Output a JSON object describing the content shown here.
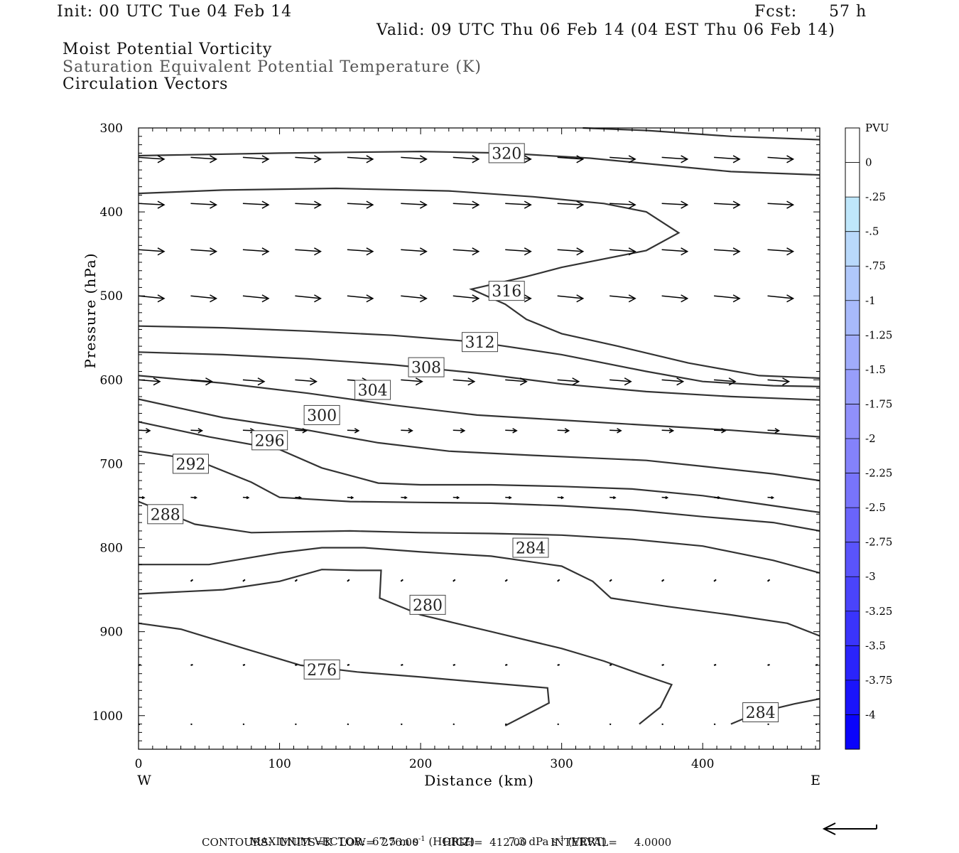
{
  "header": {
    "init": "Init: 00 UTC Tue 04 Feb 14",
    "fcst_label": "Fcst:",
    "fcst_hours": "57 h",
    "valid": "Valid: 09 UTC Thu 06 Feb 14 (04 EST Thu 06 Feb 14)",
    "fields": [
      "Moist Potential Vorticity",
      "Saturation Equivalent Potential Temperature (K)",
      "Circulation Vectors"
    ]
  },
  "footer": {
    "max_vector_label": "MAXIMUM VECTOR:",
    "max_vector_horiz_value": "67.5",
    "max_vector_horiz_units": "m s",
    "max_vector_horiz_tag": "(HORIZ)",
    "max_vector_vert_value": "7.3",
    "max_vector_vert_units": "dPa s",
    "max_vector_vert_tag": "(VERT)",
    "exponent": "-1",
    "contours_line": "CONTOURS:  UNITS=K  LOW=  276.00       HIGH=  412.00       INTERVAL=     4.0000"
  },
  "colorbar": {
    "units": "PVU",
    "labels": [
      "0",
      "-.25",
      "-.5",
      "-.75",
      "-1",
      "-1.25",
      "-1.5",
      "-1.75",
      "-2",
      "-2.25",
      "-2.5",
      "-2.75",
      "-3",
      "-3.25",
      "-3.5",
      "-3.75",
      "-4"
    ],
    "colors": [
      "#ffffff",
      "#ffffff",
      "#bfe7fb",
      "#b9d9fb",
      "#b0c8fb",
      "#a8bafb",
      "#a0acfb",
      "#989efb",
      "#9090fb",
      "#8482fb",
      "#7874fb",
      "#6a64fb",
      "#5a54fb",
      "#4a44fb",
      "#3a34fb",
      "#2a24fb",
      "#1a14fb",
      "#0a04fb"
    ]
  },
  "chart_data": {
    "type": "line",
    "xlabel": "Distance (km)",
    "ylabel": "Pressure (hPa)",
    "xlim": [
      0,
      483
    ],
    "ylim": [
      300,
      1040
    ],
    "y_scale": "linear-inverted",
    "x_ticks": [
      0,
      100,
      200,
      300,
      400
    ],
    "y_ticks": [
      300,
      400,
      500,
      600,
      700,
      800,
      900,
      1000
    ],
    "x_end_labels": {
      "left": "W",
      "right": "E"
    },
    "contour_color": "#333333",
    "contours": [
      {
        "value": 276,
        "label": "276",
        "label_at": [
          130,
          945
        ],
        "points": [
          [
            0,
            890
          ],
          [
            30,
            897
          ],
          [
            75,
            920
          ],
          [
            115,
            940
          ],
          [
            155,
            948
          ],
          [
            200,
            954
          ],
          [
            255,
            962
          ],
          [
            290,
            967
          ],
          [
            291,
            985
          ],
          [
            260,
            1012
          ]
        ]
      },
      {
        "value": 280,
        "label": "280",
        "label_at": [
          205,
          868
        ],
        "points": [
          [
            0,
            855
          ],
          [
            60,
            850
          ],
          [
            100,
            840
          ],
          [
            130,
            826
          ],
          [
            155,
            827
          ],
          [
            172,
            827
          ],
          [
            171,
            860
          ],
          [
            200,
            880
          ],
          [
            250,
            900
          ],
          [
            300,
            920
          ],
          [
            330,
            935
          ],
          [
            355,
            950
          ],
          [
            378,
            963
          ],
          [
            370,
            990
          ],
          [
            355,
            1010
          ]
        ]
      },
      {
        "value": 284,
        "label": "284",
        "label_at": [
          278,
          800
        ],
        "points": [
          [
            0,
            820
          ],
          [
            50,
            820
          ],
          [
            100,
            806
          ],
          [
            130,
            800
          ],
          [
            160,
            800
          ],
          [
            200,
            805
          ],
          [
            250,
            810
          ],
          [
            300,
            822
          ],
          [
            322,
            840
          ],
          [
            335,
            860
          ],
          [
            375,
            870
          ],
          [
            420,
            880
          ],
          [
            460,
            890
          ],
          [
            483,
            905
          ]
        ]
      },
      {
        "value": 284,
        "label": "284",
        "label_at": [
          441,
          996
        ],
        "points": [
          [
            420,
            1010
          ],
          [
            440,
            996
          ],
          [
            465,
            986
          ],
          [
            483,
            980
          ]
        ]
      },
      {
        "value": 288,
        "label": "288",
        "label_at": [
          19,
          760
        ],
        "points": [
          [
            0,
            745
          ],
          [
            40,
            772
          ],
          [
            80,
            782
          ],
          [
            150,
            780
          ],
          [
            200,
            782
          ],
          [
            250,
            783
          ],
          [
            300,
            785
          ],
          [
            350,
            790
          ],
          [
            400,
            798
          ],
          [
            450,
            815
          ],
          [
            483,
            830
          ]
        ]
      },
      {
        "value": 292,
        "label": "292",
        "label_at": [
          37,
          700
        ],
        "points": [
          [
            0,
            685
          ],
          [
            40,
            695
          ],
          [
            80,
            722
          ],
          [
            100,
            740
          ],
          [
            150,
            745
          ],
          [
            200,
            746
          ],
          [
            250,
            747
          ],
          [
            300,
            750
          ],
          [
            350,
            755
          ],
          [
            400,
            763
          ],
          [
            450,
            770
          ],
          [
            483,
            780
          ]
        ]
      },
      {
        "value": 296,
        "label": "296",
        "label_at": [
          93,
          672
        ],
        "points": [
          [
            0,
            650
          ],
          [
            50,
            668
          ],
          [
            100,
            683
          ],
          [
            130,
            705
          ],
          [
            170,
            723
          ],
          [
            200,
            725
          ],
          [
            250,
            725
          ],
          [
            300,
            727
          ],
          [
            350,
            730
          ],
          [
            400,
            738
          ],
          [
            450,
            750
          ],
          [
            483,
            758
          ]
        ]
      },
      {
        "value": 300,
        "label": "300",
        "label_at": [
          130,
          642
        ],
        "points": [
          [
            0,
            623
          ],
          [
            60,
            645
          ],
          [
            120,
            660
          ],
          [
            170,
            675
          ],
          [
            220,
            685
          ],
          [
            280,
            690
          ],
          [
            320,
            693
          ],
          [
            360,
            696
          ],
          [
            400,
            703
          ],
          [
            450,
            712
          ],
          [
            483,
            720
          ]
        ]
      },
      {
        "value": 304,
        "label": "304",
        "label_at": [
          166,
          612
        ],
        "points": [
          [
            0,
            595
          ],
          [
            60,
            604
          ],
          [
            120,
            616
          ],
          [
            180,
            630
          ],
          [
            240,
            642
          ],
          [
            300,
            648
          ],
          [
            360,
            654
          ],
          [
            420,
            660
          ],
          [
            483,
            668
          ]
        ]
      },
      {
        "value": 308,
        "label": "308",
        "label_at": [
          204,
          585
        ],
        "points": [
          [
            0,
            567
          ],
          [
            60,
            570
          ],
          [
            120,
            575
          ],
          [
            180,
            582
          ],
          [
            240,
            592
          ],
          [
            300,
            605
          ],
          [
            360,
            614
          ],
          [
            420,
            620
          ],
          [
            483,
            624
          ]
        ]
      },
      {
        "value": 312,
        "label": "312",
        "label_at": [
          242,
          555
        ],
        "points": [
          [
            0,
            536
          ],
          [
            60,
            538
          ],
          [
            120,
            542
          ],
          [
            180,
            547
          ],
          [
            240,
            555
          ],
          [
            300,
            570
          ],
          [
            360,
            590
          ],
          [
            400,
            602
          ],
          [
            450,
            607
          ],
          [
            483,
            608
          ]
        ]
      },
      {
        "value": 316,
        "label": "316",
        "label_at": [
          261,
          494
        ],
        "points": [
          [
            0,
            378
          ],
          [
            60,
            374
          ],
          [
            140,
            372
          ],
          [
            220,
            375
          ],
          [
            280,
            382
          ],
          [
            330,
            390
          ],
          [
            360,
            400
          ],
          [
            383,
            425
          ],
          [
            360,
            446
          ],
          [
            300,
            466
          ],
          [
            275,
            477
          ],
          [
            236,
            492
          ],
          [
            260,
            510
          ],
          [
            275,
            528
          ],
          [
            300,
            545
          ],
          [
            340,
            560
          ],
          [
            390,
            580
          ],
          [
            440,
            595
          ],
          [
            483,
            598
          ]
        ]
      },
      {
        "value": 320,
        "label": "320",
        "label_at": [
          261,
          330
        ],
        "points": [
          [
            0,
            333
          ],
          [
            100,
            330
          ],
          [
            200,
            328
          ],
          [
            260,
            330
          ],
          [
            320,
            336
          ],
          [
            370,
            344
          ],
          [
            420,
            352
          ],
          [
            483,
            356
          ]
        ]
      },
      {
        "value": 324,
        "label": "",
        "points": [
          [
            315,
            300
          ],
          [
            360,
            303
          ],
          [
            420,
            310
          ],
          [
            483,
            314
          ]
        ]
      }
    ],
    "vectors": [
      {
        "p": 335,
        "xs": [
          0,
          37,
          74,
          111,
          148,
          186,
          223,
          260,
          297,
          334,
          371,
          408,
          446
        ],
        "len": 36,
        "slope": 0.07
      },
      {
        "p": 390,
        "xs": [
          0,
          37,
          74,
          111,
          148,
          186,
          223,
          260,
          297,
          334,
          371,
          408,
          446
        ],
        "len": 36,
        "slope": 0.05
      },
      {
        "p": 445,
        "xs": [
          0,
          37,
          74,
          111,
          148,
          186,
          223,
          260,
          297,
          334,
          371,
          408,
          446
        ],
        "len": 36,
        "slope": 0.07
      },
      {
        "p": 500,
        "xs": [
          0,
          37,
          74,
          111,
          148,
          186,
          223,
          260,
          297,
          334,
          371,
          408,
          446
        ],
        "len": 36,
        "slope": 0.1
      },
      {
        "p": 600,
        "xs": [
          0,
          37,
          74,
          111,
          148,
          186,
          223,
          260,
          297,
          334,
          371,
          408,
          446
        ],
        "len": 30,
        "slope": 0.08
      },
      {
        "p": 660,
        "xs": [
          0,
          37,
          74,
          111,
          148,
          186,
          223,
          260,
          297,
          334,
          371,
          408,
          446
        ],
        "len": 16,
        "slope": 0.04
      },
      {
        "p": 740,
        "xs": [
          0,
          37,
          74,
          111,
          148,
          186,
          223,
          260,
          297,
          334,
          371,
          408,
          446
        ],
        "len": 8,
        "slope": 0.05
      },
      {
        "p": 840,
        "xs": [
          37,
          74,
          111,
          148,
          186,
          223,
          260,
          297,
          334,
          371,
          408,
          446
        ],
        "len": 3,
        "slope": -0.8
      },
      {
        "p": 940,
        "xs": [
          0,
          37,
          74,
          111,
          148,
          186,
          223,
          260,
          297,
          334,
          371,
          408,
          446,
          480
        ],
        "len": 3,
        "slope": -0.3
      },
      {
        "p": 1010,
        "xs": [
          0,
          37,
          74,
          111,
          148,
          186,
          223,
          260,
          297,
          334,
          371,
          408,
          446,
          480
        ],
        "len": 2,
        "slope": 0.3
      }
    ]
  }
}
